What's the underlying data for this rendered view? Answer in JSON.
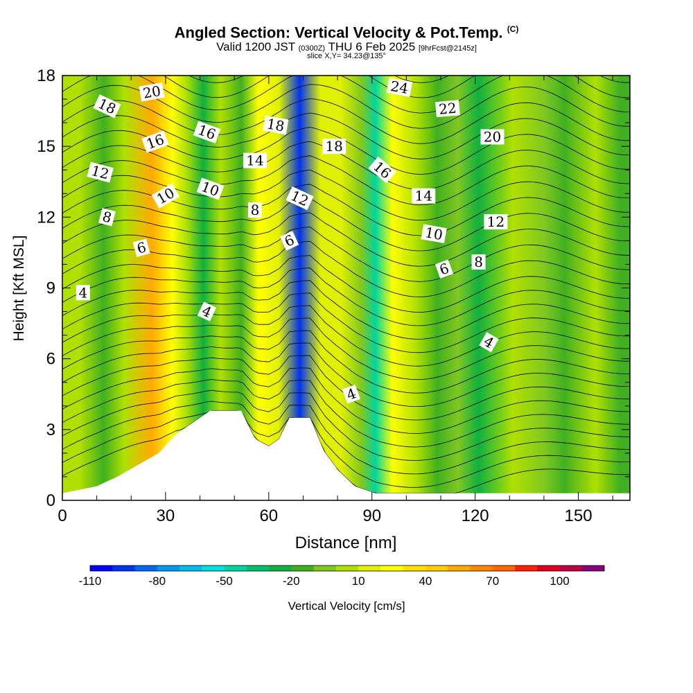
{
  "header": {
    "title_main": "Angled Section: Vertical Velocity & Pot.Temp.",
    "title_unit": "(C)",
    "valid_pre": "Valid 1200 JST",
    "valid_utc": "(0300Z)",
    "valid_date": "THU 6 Feb 2025",
    "valid_fcst": "[9hrFcst@2145z]",
    "slice": "slice X,Y= 34.23@135°"
  },
  "chart_data": {
    "type": "heatmap",
    "xlabel": "Distance [nm]",
    "ylabel": "Height [Kft MSL]",
    "xlim": [
      0,
      165
    ],
    "ylim": [
      0,
      18
    ],
    "x_ticks": [
      0,
      30,
      60,
      90,
      120,
      150
    ],
    "y_ticks": [
      0,
      3,
      6,
      9,
      12,
      15,
      18
    ],
    "colorbar": {
      "label": "Vertical Velocity [cm/s]",
      "tick_labels": [
        "-110",
        "-80",
        "-50",
        "-20",
        "10",
        "40",
        "70",
        "100"
      ],
      "tick_values": [
        -110,
        -80,
        -50,
        -20,
        10,
        40,
        70,
        100
      ],
      "levels": [
        -110,
        -100,
        -90,
        -80,
        -70,
        -60,
        -50,
        -40,
        -30,
        -20,
        -10,
        0,
        10,
        20,
        30,
        40,
        50,
        60,
        70,
        80,
        90,
        100,
        110,
        120
      ],
      "colors": [
        "#0000ff",
        "#0033ee",
        "#0066f0",
        "#0099f0",
        "#00bbf0",
        "#00e0e0",
        "#00d4a0",
        "#00c070",
        "#10b040",
        "#40b020",
        "#80c820",
        "#b0e000",
        "#e0f000",
        "#ffff00",
        "#ffe000",
        "#ffcc00",
        "#ffaa00",
        "#ff8800",
        "#ff6600",
        "#ff2200",
        "#dd0022",
        "#bb0044",
        "#880077"
      ]
    },
    "velocity_columns": [
      {
        "x": 5,
        "v": 5
      },
      {
        "x": 12,
        "v": -20
      },
      {
        "x": 18,
        "v": 0
      },
      {
        "x": 26,
        "v": 55
      },
      {
        "x": 32,
        "v": 20
      },
      {
        "x": 36,
        "v": 0
      },
      {
        "x": 41,
        "v": -25
      },
      {
        "x": 46,
        "v": 5
      },
      {
        "x": 52,
        "v": -15
      },
      {
        "x": 57,
        "v": 25
      },
      {
        "x": 63,
        "v": 10
      },
      {
        "x": 69,
        "v": -95
      },
      {
        "x": 75,
        "v": 10
      },
      {
        "x": 81,
        "v": 15
      },
      {
        "x": 87,
        "v": -10
      },
      {
        "x": 91,
        "v": -45
      },
      {
        "x": 96,
        "v": 20
      },
      {
        "x": 103,
        "v": 5
      },
      {
        "x": 109,
        "v": -15
      },
      {
        "x": 115,
        "v": -5
      },
      {
        "x": 121,
        "v": -25
      },
      {
        "x": 131,
        "v": 5
      },
      {
        "x": 140,
        "v": -5
      },
      {
        "x": 146,
        "v": -20
      },
      {
        "x": 155,
        "v": 5
      },
      {
        "x": 162,
        "v": -15
      }
    ],
    "terrain_kft": [
      {
        "x": 0,
        "h": 0.3
      },
      {
        "x": 10,
        "h": 0.6
      },
      {
        "x": 16,
        "h": 1.0
      },
      {
        "x": 22,
        "h": 1.5
      },
      {
        "x": 28,
        "h": 2.0
      },
      {
        "x": 33,
        "h": 2.8
      },
      {
        "x": 40,
        "h": 3.5
      },
      {
        "x": 43,
        "h": 3.8
      },
      {
        "x": 52,
        "h": 3.8
      },
      {
        "x": 56,
        "h": 2.6
      },
      {
        "x": 60,
        "h": 2.3
      },
      {
        "x": 63,
        "h": 2.6
      },
      {
        "x": 66,
        "h": 3.5
      },
      {
        "x": 72,
        "h": 3.5
      },
      {
        "x": 76,
        "h": 2.1
      },
      {
        "x": 80,
        "h": 1.3
      },
      {
        "x": 85,
        "h": 0.6
      },
      {
        "x": 91,
        "h": 0.3
      },
      {
        "x": 165,
        "h": 0.3
      }
    ],
    "contour_label_values": [
      4,
      6,
      8,
      10,
      12,
      14,
      16,
      18,
      20,
      22,
      24
    ],
    "contour_labels": [
      {
        "text": "18",
        "x": 13,
        "y": 16.7,
        "angle": 25
      },
      {
        "text": "20",
        "x": 26,
        "y": 17.3,
        "angle": -10
      },
      {
        "text": "16",
        "x": 27,
        "y": 15.2,
        "angle": -20
      },
      {
        "text": "12",
        "x": 11,
        "y": 13.9,
        "angle": 15
      },
      {
        "text": "10",
        "x": 30,
        "y": 12.9,
        "angle": -30
      },
      {
        "text": "8",
        "x": 13,
        "y": 12.0,
        "angle": 15
      },
      {
        "text": "6",
        "x": 23,
        "y": 10.7,
        "angle": -15
      },
      {
        "text": "4",
        "x": 6,
        "y": 8.8,
        "angle": 0
      },
      {
        "text": "16",
        "x": 42,
        "y": 15.6,
        "angle": 20
      },
      {
        "text": "10",
        "x": 43,
        "y": 13.2,
        "angle": 20
      },
      {
        "text": "14",
        "x": 56,
        "y": 14.4,
        "angle": 0
      },
      {
        "text": "8",
        "x": 56,
        "y": 12.3,
        "angle": 0
      },
      {
        "text": "18",
        "x": 62,
        "y": 15.9,
        "angle": 10
      },
      {
        "text": "12",
        "x": 69,
        "y": 12.8,
        "angle": 25
      },
      {
        "text": "6",
        "x": 66,
        "y": 11.0,
        "angle": -25
      },
      {
        "text": "4",
        "x": 42,
        "y": 8.0,
        "angle": 25
      },
      {
        "text": "18",
        "x": 79,
        "y": 15.0,
        "angle": 0
      },
      {
        "text": "24",
        "x": 98,
        "y": 17.5,
        "angle": 10
      },
      {
        "text": "16",
        "x": 93,
        "y": 14.0,
        "angle": 40
      },
      {
        "text": "22",
        "x": 112,
        "y": 16.6,
        "angle": -5
      },
      {
        "text": "20",
        "x": 125,
        "y": 15.4,
        "angle": 0
      },
      {
        "text": "14",
        "x": 105,
        "y": 12.9,
        "angle": 0
      },
      {
        "text": "12",
        "x": 126,
        "y": 11.8,
        "angle": 0
      },
      {
        "text": "10",
        "x": 108,
        "y": 11.3,
        "angle": 10
      },
      {
        "text": "8",
        "x": 121,
        "y": 10.1,
        "angle": 0
      },
      {
        "text": "6",
        "x": 111,
        "y": 9.8,
        "angle": -20
      },
      {
        "text": "4",
        "x": 84,
        "y": 4.5,
        "angle": -20
      },
      {
        "text": "4",
        "x": 124,
        "y": 6.7,
        "angle": 30
      }
    ]
  }
}
